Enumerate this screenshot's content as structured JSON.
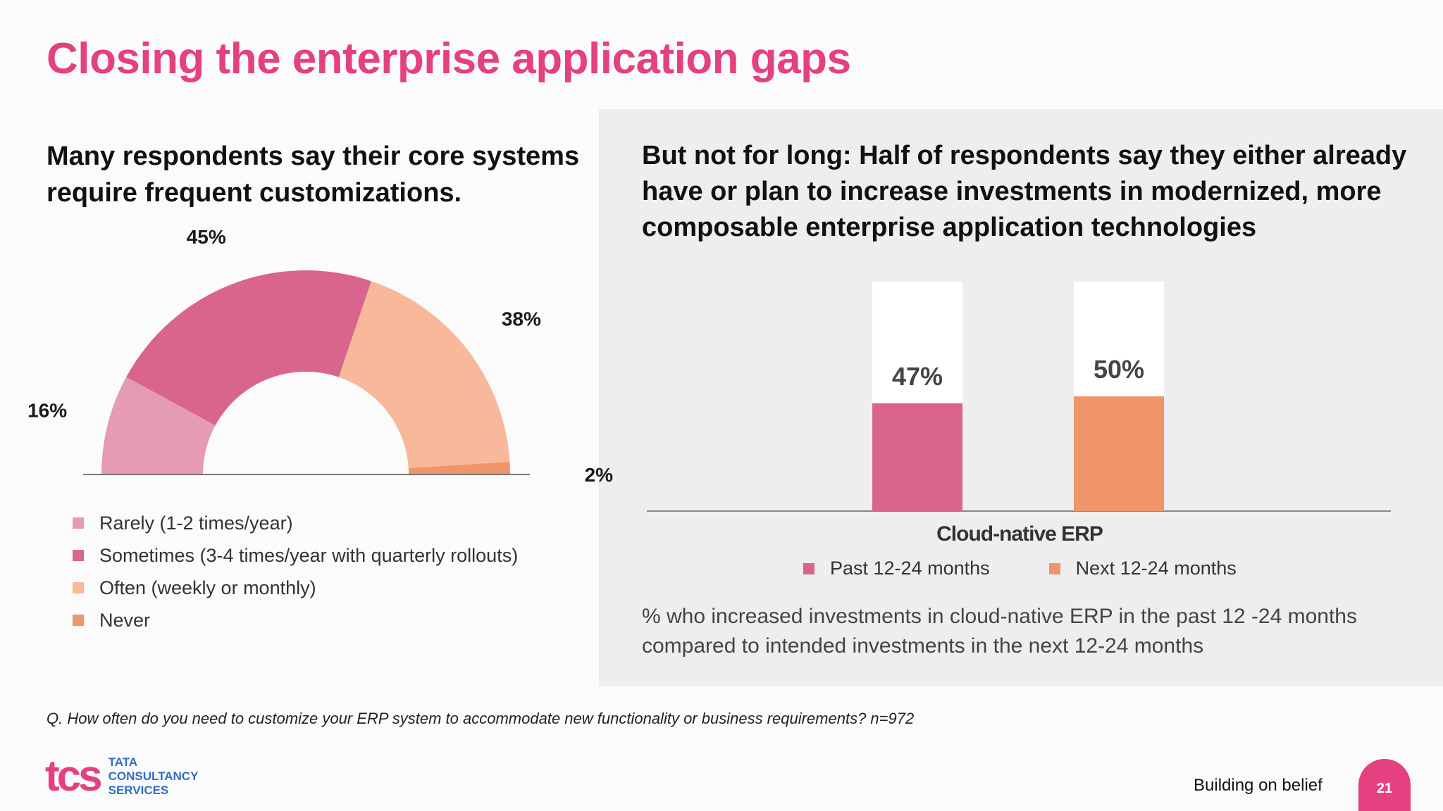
{
  "title": "Closing the enterprise application gaps",
  "left_heading": "Many respondents say their core systems require frequent customizations.",
  "right_heading": "But not for long: Half of respondents say they either already have or plan to increase investments in modernized, more composable enterprise application technologies",
  "chart_data": [
    {
      "type": "pie",
      "variant": "half-donut",
      "categories": [
        "Rarely (1-2 times/year)",
        "Sometimes (3-4 times/year with quarterly rollouts)",
        "Often (weekly or monthly)",
        "Never"
      ],
      "values": [
        16,
        45,
        38,
        2
      ],
      "labels": [
        "16%",
        "45%",
        "38%",
        "2%"
      ],
      "colors": [
        "#e59ab6",
        "#d9648e",
        "#f8b99a",
        "#f0956a"
      ],
      "legend": "bottom"
    },
    {
      "type": "bar",
      "categories": [
        "Cloud-native ERP"
      ],
      "series": [
        {
          "name": "Past 12-24 months",
          "values": [
            47
          ],
          "label": "47%",
          "color": "#d9648e"
        },
        {
          "name": "Next 12-24 months",
          "values": [
            50
          ],
          "label": "50%",
          "color": "#f0956a"
        }
      ],
      "ylim": [
        0,
        100
      ],
      "xlabel": "Cloud-native ERP",
      "legend": "bottom"
    }
  ],
  "bar_note": "% who increased investments in cloud-native ERP in the past 12 -24 months compared to intended investments in the next 12-24 months",
  "footnote": "Q. How often do you need to customize your ERP system to accommodate new functionality or business requirements? n=972",
  "logo": {
    "mark": "tcs",
    "lines": [
      "TATA",
      "CONSULTANCY",
      "SERVICES"
    ]
  },
  "tagline": "Building on belief",
  "page_number": "21"
}
